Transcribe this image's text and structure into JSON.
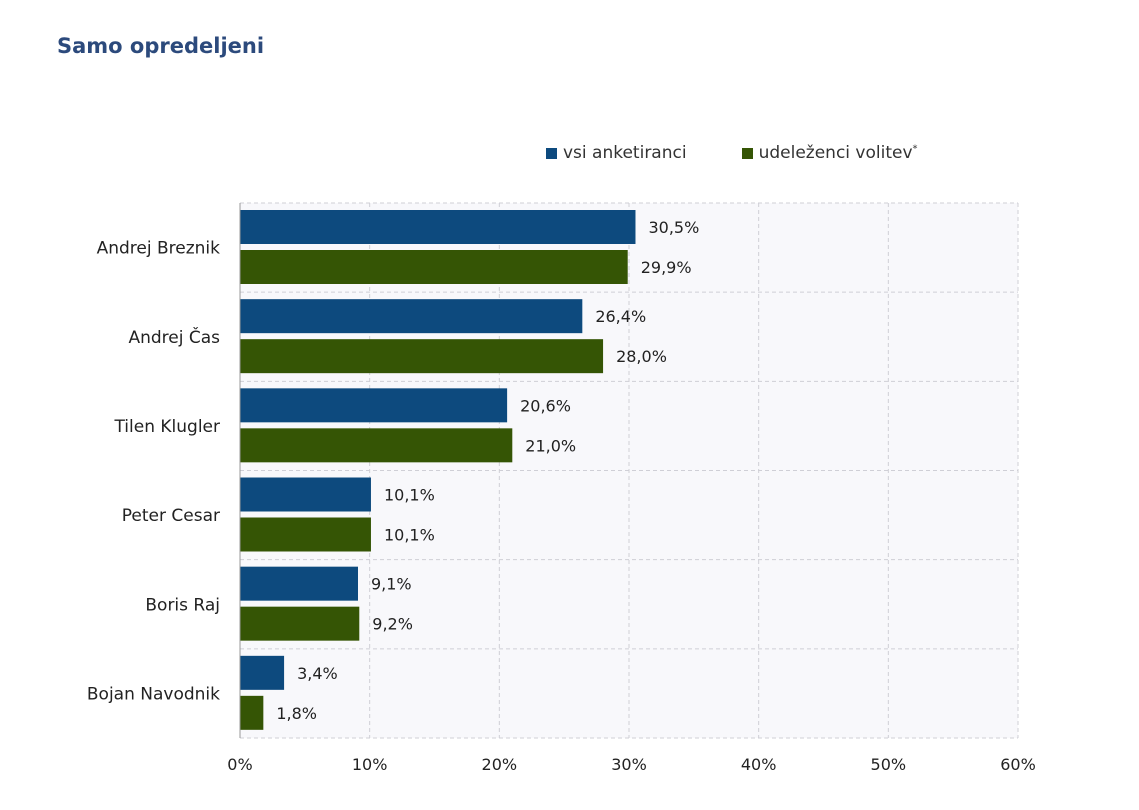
{
  "title": "Samo opredeljeni",
  "legend": [
    {
      "label": "vsi anketiranci",
      "sup": "",
      "color": "#0d4a7e"
    },
    {
      "label": "udeleženci volitev",
      "sup": "*",
      "color": "#355505"
    }
  ],
  "chart_data": {
    "type": "bar",
    "orientation": "horizontal",
    "title": "Samo opredeljeni",
    "categories": [
      "Andrej Breznik",
      "Andrej Čas",
      "Tilen Klugler",
      "Peter Cesar",
      "Boris Raj",
      "Bojan Navodnik"
    ],
    "series": [
      {
        "name": "vsi anketiranci",
        "color": "#0d4a7e",
        "values": [
          30.5,
          26.4,
          20.6,
          10.1,
          9.1,
          3.4
        ],
        "labels": [
          "30,5%",
          "26,4%",
          "20,6%",
          "10,1%",
          "9,1%",
          "3,4%"
        ]
      },
      {
        "name": "udeleženci volitev*",
        "color": "#355505",
        "values": [
          29.9,
          28.0,
          21.0,
          10.1,
          9.2,
          1.8
        ],
        "labels": [
          "29,9%",
          "28,0%",
          "21,0%",
          "10,1%",
          "9,2%",
          "1,8%"
        ]
      }
    ],
    "xlim": [
      0,
      60
    ],
    "xticks": [
      "0%",
      "10%",
      "20%",
      "30%",
      "40%",
      "50%",
      "60%"
    ],
    "grid": true,
    "legend_position": "top-right"
  }
}
